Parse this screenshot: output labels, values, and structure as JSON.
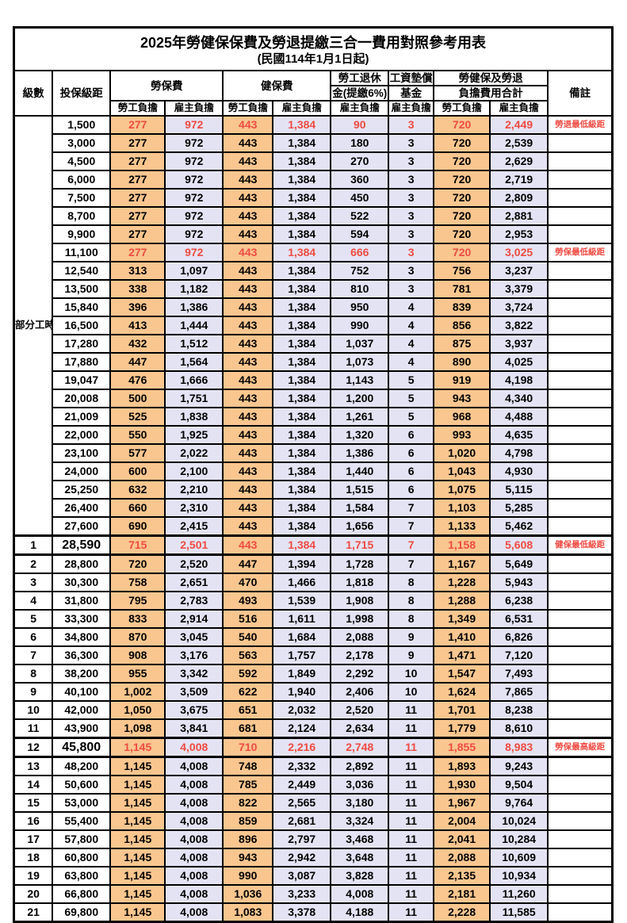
{
  "title": "2025年勞健保保費及勞退提繳三合一費用對照參考用表",
  "subtitle": "(民國114年1月1日起)",
  "header": {
    "level": "級數",
    "bracket": "投保級距",
    "labor_insurance": "勞保費",
    "health_insurance": "健保費",
    "pension_line1": "勞工退休",
    "pension_line2": "金(提繳6%)",
    "wage_fund_line1": "工資墊償",
    "wage_fund_line2": "基金",
    "total_line1": "勞健保及勞退",
    "total_line2": "負擔費用合計",
    "remark": "備註",
    "employee_label": "勞工負擔",
    "employer_label": "雇主負擔"
  },
  "part_time_label": "部分工時",
  "colors": {
    "employee_bg": "#F9C68F",
    "employer_bg": "#E4E3F4",
    "highlight_text": "#EE4B42"
  },
  "rows": [
    {
      "level": null,
      "bracket": "1,500",
      "values": [
        "277",
        "972",
        "443",
        "1,384",
        "90",
        "3",
        "720",
        "2,449"
      ],
      "remark": "勞退最低級距",
      "highlight": true,
      "big": false,
      "thick": false
    },
    {
      "level": null,
      "bracket": "3,000",
      "values": [
        "277",
        "972",
        "443",
        "1,384",
        "180",
        "3",
        "720",
        "2,539"
      ],
      "remark": "",
      "highlight": false,
      "big": false,
      "thick": false
    },
    {
      "level": null,
      "bracket": "4,500",
      "values": [
        "277",
        "972",
        "443",
        "1,384",
        "270",
        "3",
        "720",
        "2,629"
      ],
      "remark": "",
      "highlight": false,
      "big": false,
      "thick": false
    },
    {
      "level": null,
      "bracket": "6,000",
      "values": [
        "277",
        "972",
        "443",
        "1,384",
        "360",
        "3",
        "720",
        "2,719"
      ],
      "remark": "",
      "highlight": false,
      "big": false,
      "thick": false
    },
    {
      "level": null,
      "bracket": "7,500",
      "values": [
        "277",
        "972",
        "443",
        "1,384",
        "450",
        "3",
        "720",
        "2,809"
      ],
      "remark": "",
      "highlight": false,
      "big": false,
      "thick": false
    },
    {
      "level": null,
      "bracket": "8,700",
      "values": [
        "277",
        "972",
        "443",
        "1,384",
        "522",
        "3",
        "720",
        "2,881"
      ],
      "remark": "",
      "highlight": false,
      "big": false,
      "thick": false
    },
    {
      "level": null,
      "bracket": "9,900",
      "values": [
        "277",
        "972",
        "443",
        "1,384",
        "594",
        "3",
        "720",
        "2,953"
      ],
      "remark": "",
      "highlight": false,
      "big": false,
      "thick": false
    },
    {
      "level": null,
      "bracket": "11,100",
      "values": [
        "277",
        "972",
        "443",
        "1,384",
        "666",
        "3",
        "720",
        "3,025"
      ],
      "remark": "勞保最低級距",
      "highlight": true,
      "big": false,
      "thick": false
    },
    {
      "level": null,
      "bracket": "12,540",
      "values": [
        "313",
        "1,097",
        "443",
        "1,384",
        "752",
        "3",
        "756",
        "3,237"
      ],
      "remark": "",
      "highlight": false,
      "big": false,
      "thick": false
    },
    {
      "level": null,
      "bracket": "13,500",
      "values": [
        "338",
        "1,182",
        "443",
        "1,384",
        "810",
        "3",
        "781",
        "3,379"
      ],
      "remark": "",
      "highlight": false,
      "big": false,
      "thick": false
    },
    {
      "level": null,
      "bracket": "15,840",
      "values": [
        "396",
        "1,386",
        "443",
        "1,384",
        "950",
        "4",
        "839",
        "3,724"
      ],
      "remark": "",
      "highlight": false,
      "big": false,
      "thick": false
    },
    {
      "level": null,
      "bracket": "16,500",
      "values": [
        "413",
        "1,444",
        "443",
        "1,384",
        "990",
        "4",
        "856",
        "3,822"
      ],
      "remark": "",
      "highlight": false,
      "big": false,
      "thick": false
    },
    {
      "level": null,
      "bracket": "17,280",
      "values": [
        "432",
        "1,512",
        "443",
        "1,384",
        "1,037",
        "4",
        "875",
        "3,937"
      ],
      "remark": "",
      "highlight": false,
      "big": false,
      "thick": false
    },
    {
      "level": null,
      "bracket": "17,880",
      "values": [
        "447",
        "1,564",
        "443",
        "1,384",
        "1,073",
        "4",
        "890",
        "4,025"
      ],
      "remark": "",
      "highlight": false,
      "big": false,
      "thick": false
    },
    {
      "level": null,
      "bracket": "19,047",
      "values": [
        "476",
        "1,666",
        "443",
        "1,384",
        "1,143",
        "5",
        "919",
        "4,198"
      ],
      "remark": "",
      "highlight": false,
      "big": false,
      "thick": false
    },
    {
      "level": null,
      "bracket": "20,008",
      "values": [
        "500",
        "1,751",
        "443",
        "1,384",
        "1,200",
        "5",
        "943",
        "4,340"
      ],
      "remark": "",
      "highlight": false,
      "big": false,
      "thick": false
    },
    {
      "level": null,
      "bracket": "21,009",
      "values": [
        "525",
        "1,838",
        "443",
        "1,384",
        "1,261",
        "5",
        "968",
        "4,488"
      ],
      "remark": "",
      "highlight": false,
      "big": false,
      "thick": false
    },
    {
      "level": null,
      "bracket": "22,000",
      "values": [
        "550",
        "1,925",
        "443",
        "1,384",
        "1,320",
        "6",
        "993",
        "4,635"
      ],
      "remark": "",
      "highlight": false,
      "big": false,
      "thick": false
    },
    {
      "level": null,
      "bracket": "23,100",
      "values": [
        "577",
        "2,022",
        "443",
        "1,384",
        "1,386",
        "6",
        "1,020",
        "4,798"
      ],
      "remark": "",
      "highlight": false,
      "big": false,
      "thick": false
    },
    {
      "level": null,
      "bracket": "24,000",
      "values": [
        "600",
        "2,100",
        "443",
        "1,384",
        "1,440",
        "6",
        "1,043",
        "4,930"
      ],
      "remark": "",
      "highlight": false,
      "big": false,
      "thick": false
    },
    {
      "level": null,
      "bracket": "25,250",
      "values": [
        "632",
        "2,210",
        "443",
        "1,384",
        "1,515",
        "6",
        "1,075",
        "5,115"
      ],
      "remark": "",
      "highlight": false,
      "big": false,
      "thick": false
    },
    {
      "level": null,
      "bracket": "26,400",
      "values": [
        "660",
        "2,310",
        "443",
        "1,384",
        "1,584",
        "7",
        "1,103",
        "5,285"
      ],
      "remark": "",
      "highlight": false,
      "big": false,
      "thick": false
    },
    {
      "level": null,
      "bracket": "27,600",
      "values": [
        "690",
        "2,415",
        "443",
        "1,384",
        "1,656",
        "7",
        "1,133",
        "5,462"
      ],
      "remark": "",
      "highlight": false,
      "big": false,
      "thick": false
    },
    {
      "level": "1",
      "bracket": "28,590",
      "values": [
        "715",
        "2,501",
        "443",
        "1,384",
        "1,715",
        "7",
        "1,158",
        "5,608"
      ],
      "remark": "健保最低級距",
      "highlight": true,
      "big": true,
      "thick": true
    },
    {
      "level": "2",
      "bracket": "28,800",
      "values": [
        "720",
        "2,520",
        "447",
        "1,394",
        "1,728",
        "7",
        "1,167",
        "5,649"
      ],
      "remark": "",
      "highlight": false,
      "big": false,
      "thick": false
    },
    {
      "level": "3",
      "bracket": "30,300",
      "values": [
        "758",
        "2,651",
        "470",
        "1,466",
        "1,818",
        "8",
        "1,228",
        "5,943"
      ],
      "remark": "",
      "highlight": false,
      "big": false,
      "thick": false
    },
    {
      "level": "4",
      "bracket": "31,800",
      "values": [
        "795",
        "2,783",
        "493",
        "1,539",
        "1,908",
        "8",
        "1,288",
        "6,238"
      ],
      "remark": "",
      "highlight": false,
      "big": false,
      "thick": false
    },
    {
      "level": "5",
      "bracket": "33,300",
      "values": [
        "833",
        "2,914",
        "516",
        "1,611",
        "1,998",
        "8",
        "1,349",
        "6,531"
      ],
      "remark": "",
      "highlight": false,
      "big": false,
      "thick": false
    },
    {
      "level": "6",
      "bracket": "34,800",
      "values": [
        "870",
        "3,045",
        "540",
        "1,684",
        "2,088",
        "9",
        "1,410",
        "6,826"
      ],
      "remark": "",
      "highlight": false,
      "big": false,
      "thick": false
    },
    {
      "level": "7",
      "bracket": "36,300",
      "values": [
        "908",
        "3,176",
        "563",
        "1,757",
        "2,178",
        "9",
        "1,471",
        "7,120"
      ],
      "remark": "",
      "highlight": false,
      "big": false,
      "thick": false
    },
    {
      "level": "8",
      "bracket": "38,200",
      "values": [
        "955",
        "3,342",
        "592",
        "1,849",
        "2,292",
        "10",
        "1,547",
        "7,493"
      ],
      "remark": "",
      "highlight": false,
      "big": false,
      "thick": false
    },
    {
      "level": "9",
      "bracket": "40,100",
      "values": [
        "1,002",
        "3,509",
        "622",
        "1,940",
        "2,406",
        "10",
        "1,624",
        "7,865"
      ],
      "remark": "",
      "highlight": false,
      "big": false,
      "thick": false
    },
    {
      "level": "10",
      "bracket": "42,000",
      "values": [
        "1,050",
        "3,675",
        "651",
        "2,032",
        "2,520",
        "11",
        "1,701",
        "8,238"
      ],
      "remark": "",
      "highlight": false,
      "big": false,
      "thick": false
    },
    {
      "level": "11",
      "bracket": "43,900",
      "values": [
        "1,098",
        "3,841",
        "681",
        "2,124",
        "2,634",
        "11",
        "1,779",
        "8,610"
      ],
      "remark": "",
      "highlight": false,
      "big": false,
      "thick": false
    },
    {
      "level": "12",
      "bracket": "45,800",
      "values": [
        "1,145",
        "4,008",
        "710",
        "2,216",
        "2,748",
        "11",
        "1,855",
        "8,983"
      ],
      "remark": "勞保最高級距",
      "highlight": true,
      "big": true,
      "thick": true
    },
    {
      "level": "13",
      "bracket": "48,200",
      "values": [
        "1,145",
        "4,008",
        "748",
        "2,332",
        "2,892",
        "11",
        "1,893",
        "9,243"
      ],
      "remark": "",
      "highlight": false,
      "big": false,
      "thick": false
    },
    {
      "level": "14",
      "bracket": "50,600",
      "values": [
        "1,145",
        "4,008",
        "785",
        "2,449",
        "3,036",
        "11",
        "1,930",
        "9,504"
      ],
      "remark": "",
      "highlight": false,
      "big": false,
      "thick": false
    },
    {
      "level": "15",
      "bracket": "53,000",
      "values": [
        "1,145",
        "4,008",
        "822",
        "2,565",
        "3,180",
        "11",
        "1,967",
        "9,764"
      ],
      "remark": "",
      "highlight": false,
      "big": false,
      "thick": false
    },
    {
      "level": "16",
      "bracket": "55,400",
      "values": [
        "1,145",
        "4,008",
        "859",
        "2,681",
        "3,324",
        "11",
        "2,004",
        "10,024"
      ],
      "remark": "",
      "highlight": false,
      "big": false,
      "thick": false
    },
    {
      "level": "17",
      "bracket": "57,800",
      "values": [
        "1,145",
        "4,008",
        "896",
        "2,797",
        "3,468",
        "11",
        "2,041",
        "10,284"
      ],
      "remark": "",
      "highlight": false,
      "big": false,
      "thick": false
    },
    {
      "level": "18",
      "bracket": "60,800",
      "values": [
        "1,145",
        "4,008",
        "943",
        "2,942",
        "3,648",
        "11",
        "2,088",
        "10,609"
      ],
      "remark": "",
      "highlight": false,
      "big": false,
      "thick": false
    },
    {
      "level": "19",
      "bracket": "63,800",
      "values": [
        "1,145",
        "4,008",
        "990",
        "3,087",
        "3,828",
        "11",
        "2,135",
        "10,934"
      ],
      "remark": "",
      "highlight": false,
      "big": false,
      "thick": false
    },
    {
      "level": "20",
      "bracket": "66,800",
      "values": [
        "1,145",
        "4,008",
        "1,036",
        "3,233",
        "4,008",
        "11",
        "2,181",
        "11,260"
      ],
      "remark": "",
      "highlight": false,
      "big": false,
      "thick": false
    },
    {
      "level": "21",
      "bracket": "69,800",
      "values": [
        "1,145",
        "4,008",
        "1,083",
        "3,378",
        "4,188",
        "11",
        "2,228",
        "11,585"
      ],
      "remark": "",
      "highlight": false,
      "big": false,
      "thick": false
    }
  ]
}
